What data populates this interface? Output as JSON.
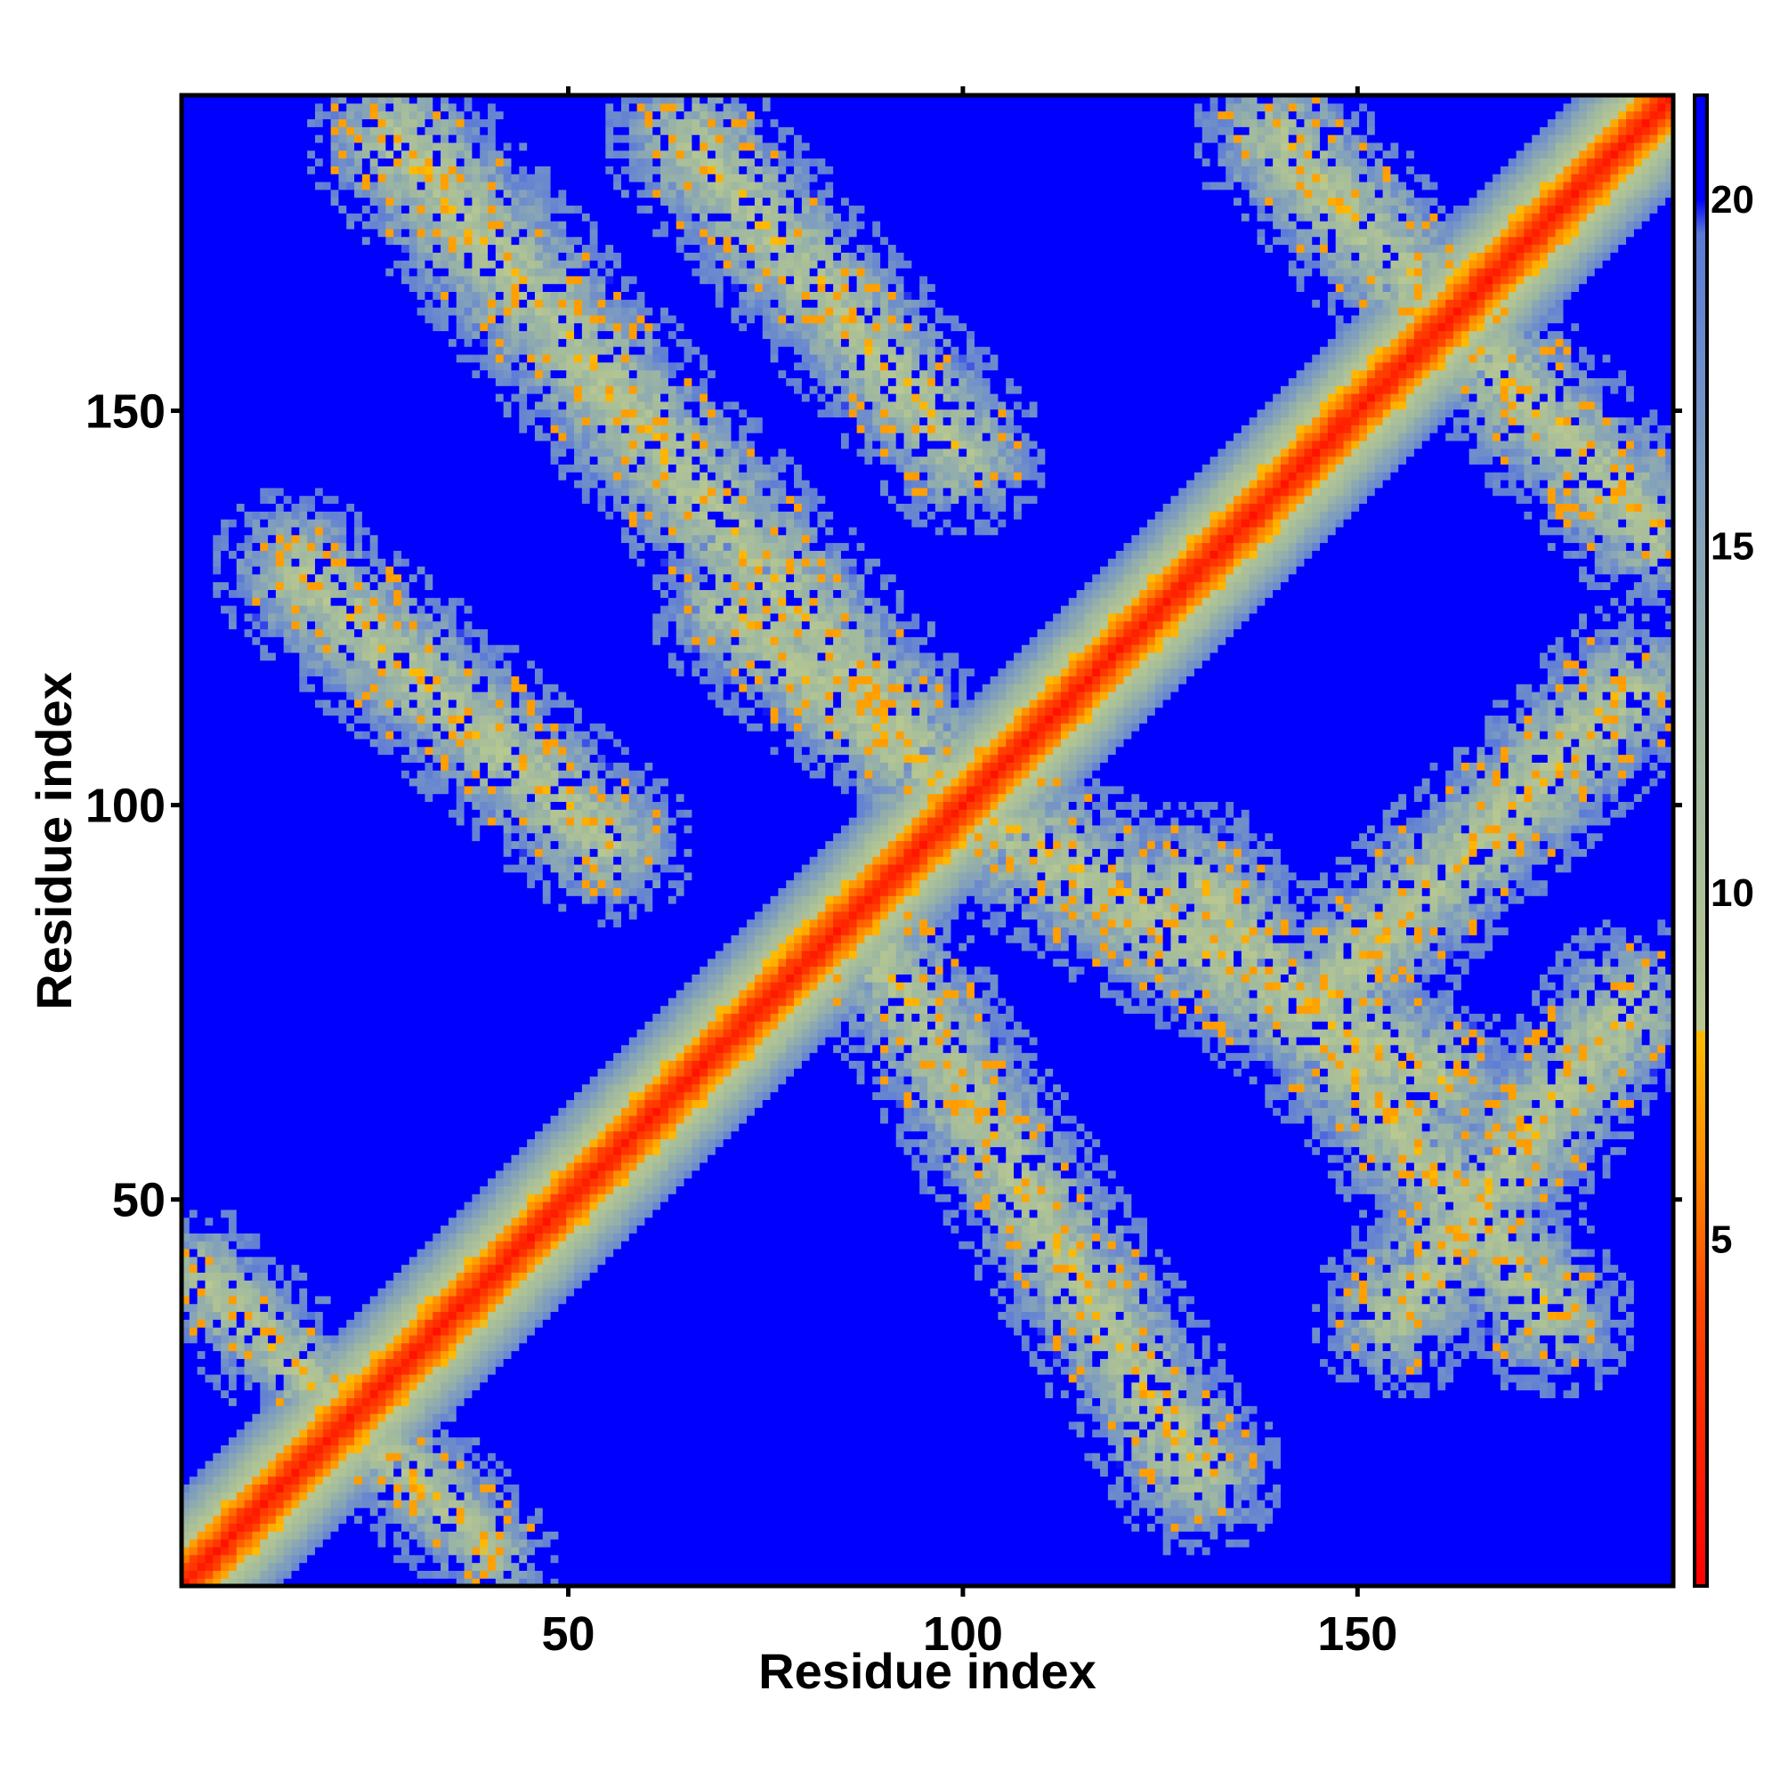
{
  "chart_data": {
    "type": "heatmap",
    "title": "",
    "xlabel": "Residue index",
    "ylabel": "Residue index",
    "xlim": [
      1,
      190
    ],
    "ylim": [
      1,
      190
    ],
    "x_ticks": [
      50,
      100,
      150
    ],
    "y_ticks": [
      50,
      100,
      150
    ],
    "colorbar": {
      "range": [
        0,
        21.5
      ],
      "ticks": [
        5,
        10,
        15,
        20
      ],
      "stops": [
        {
          "value": 0,
          "color": "#ff0000"
        },
        {
          "value": 4,
          "color": "#ff4400"
        },
        {
          "value": 6,
          "color": "#ff8800"
        },
        {
          "value": 8,
          "color": "#ffbb00"
        },
        {
          "value": 8.01,
          "color": "#b8c890"
        },
        {
          "value": 12,
          "color": "#9fb8a0"
        },
        {
          "value": 16,
          "color": "#7d9cc0"
        },
        {
          "value": 19.5,
          "color": "#5b7ad8"
        },
        {
          "value": 20,
          "color": "#0000ff"
        },
        {
          "value": 21.5,
          "color": "#0000ff"
        }
      ]
    },
    "background_value": 21,
    "n_residues": 190,
    "diagonal_band": {
      "center": 0,
      "width": 9
    },
    "contact_bands": [
      {
        "label": "",
        "from": [
          3,
          40
        ],
        "to": [
          40,
          5
        ],
        "width": 6
      },
      {
        "label": "",
        "from": [
          15,
          130
        ],
        "to": [
          55,
          95
        ],
        "width": 8
      },
      {
        "label": "",
        "from": [
          28,
          185
        ],
        "to": [
          100,
          100
        ],
        "width": 9
      },
      {
        "label": "",
        "from": [
          65,
          185
        ],
        "to": [
          100,
          145
        ],
        "width": 8
      },
      {
        "label": "",
        "from": [
          70,
          125
        ],
        "to": [
          100,
          100
        ],
        "width": 7
      },
      {
        "label": "",
        "from": [
          90,
          80
        ],
        "to": [
          130,
          15
        ],
        "width": 8
      },
      {
        "label": "",
        "from": [
          100,
          100
        ],
        "to": [
          160,
          65
        ],
        "width": 9
      },
      {
        "label": "",
        "from": [
          130,
          90
        ],
        "to": [
          175,
          35
        ],
        "width": 8
      },
      {
        "label": "",
        "from": [
          140,
          185
        ],
        "to": [
          188,
          135
        ],
        "width": 8
      },
      {
        "label": "",
        "from": [
          145,
          75
        ],
        "to": [
          185,
          115
        ],
        "width": 8
      },
      {
        "label": "",
        "from": [
          155,
          35
        ],
        "to": [
          185,
          75
        ],
        "width": 8
      }
    ]
  }
}
